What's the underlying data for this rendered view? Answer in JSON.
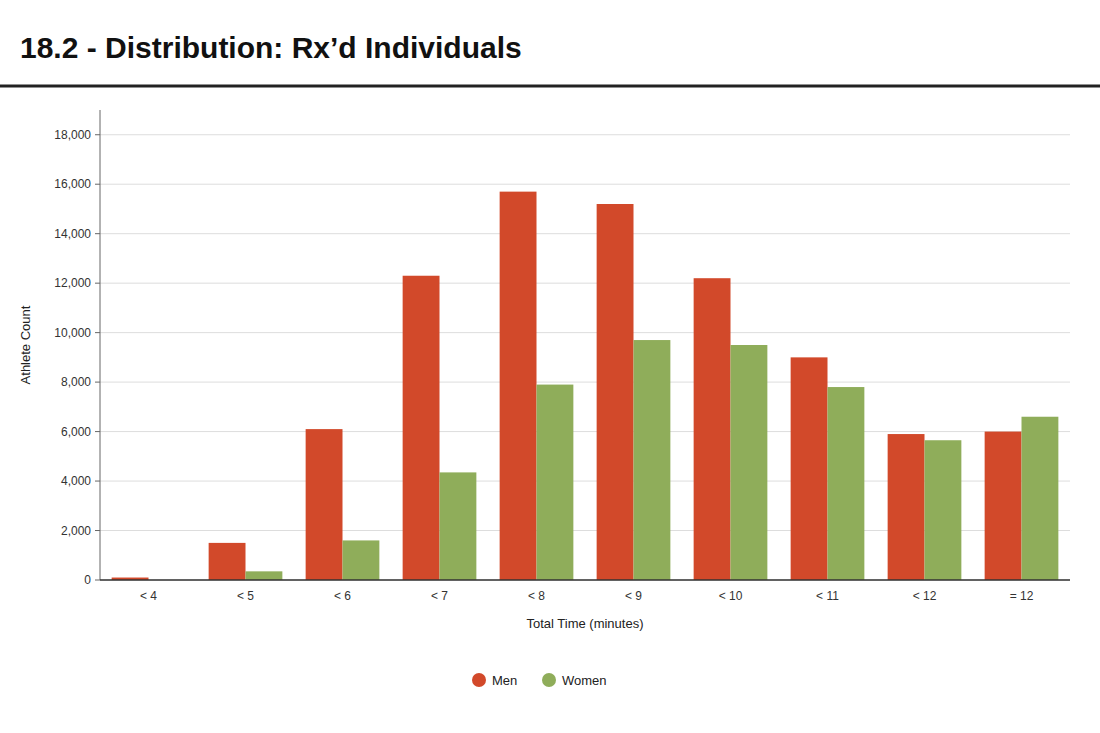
{
  "chart_data": {
    "type": "bar",
    "title": "18.2 - Distribution: Rx’d Individuals",
    "categories": [
      "< 4",
      "< 5",
      "< 6",
      "< 7",
      "< 8",
      "< 9",
      "< 10",
      "< 11",
      "< 12",
      "= 12"
    ],
    "series": [
      {
        "name": "Men",
        "color": "#D2492A",
        "values": [
          100,
          1500,
          6100,
          12300,
          15700,
          15200,
          12200,
          9000,
          5900,
          6000
        ]
      },
      {
        "name": "Women",
        "color": "#8FAD5A",
        "values": [
          0,
          350,
          1600,
          4350,
          7900,
          9700,
          9500,
          7800,
          5650,
          6600
        ]
      }
    ],
    "xlabel": "Total Time (minutes)",
    "ylabel": "Athlete Count",
    "ylim": [
      0,
      19000
    ],
    "yticks": [
      0,
      {
        "value": 2000,
        "label": "2,000"
      },
      {
        "value": 4000,
        "label": "4,000"
      },
      {
        "value": 6000,
        "label": "6,000"
      },
      {
        "value": 8000,
        "label": "8,000"
      },
      {
        "value": 10000,
        "label": "10,000"
      },
      {
        "value": 12000,
        "label": "12,000"
      },
      {
        "value": 14000,
        "label": "14,000"
      },
      {
        "value": 16000,
        "label": "16,000"
      },
      {
        "value": 18000,
        "label": "18,000"
      }
    ],
    "grid": true,
    "legend": "bottom"
  }
}
